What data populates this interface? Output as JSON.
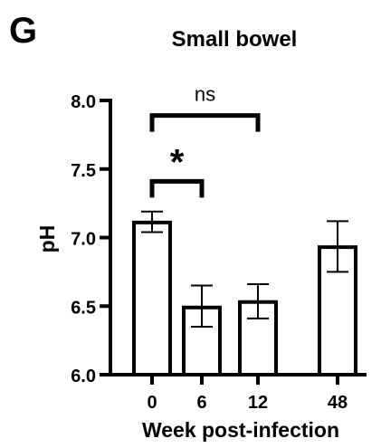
{
  "panel_label": "G",
  "chart_data": {
    "type": "bar",
    "title": "Small bowel",
    "xlabel": "Week post-infection",
    "ylabel": "pH",
    "categories": [
      "0",
      "6",
      "12",
      "48"
    ],
    "values": [
      7.11,
      6.49,
      6.53,
      6.93
    ],
    "error_low": [
      7.04,
      6.35,
      6.41,
      6.75
    ],
    "error_high": [
      7.19,
      6.65,
      6.66,
      7.12
    ],
    "ylim": [
      6.0,
      8.0
    ],
    "yticks": [
      6.0,
      6.5,
      7.0,
      7.5,
      8.0
    ],
    "ytick_labels": [
      "6.0",
      "6.5",
      "7.0",
      "7.5",
      "8.0"
    ],
    "grid": false,
    "bar_fill": "#ffffff",
    "bar_stroke": "#000000",
    "annotations": [
      {
        "from": 0,
        "to": 2,
        "y": 7.89,
        "label": "ns"
      },
      {
        "from": 0,
        "to": 1,
        "y": 7.41,
        "label": "*"
      }
    ]
  }
}
